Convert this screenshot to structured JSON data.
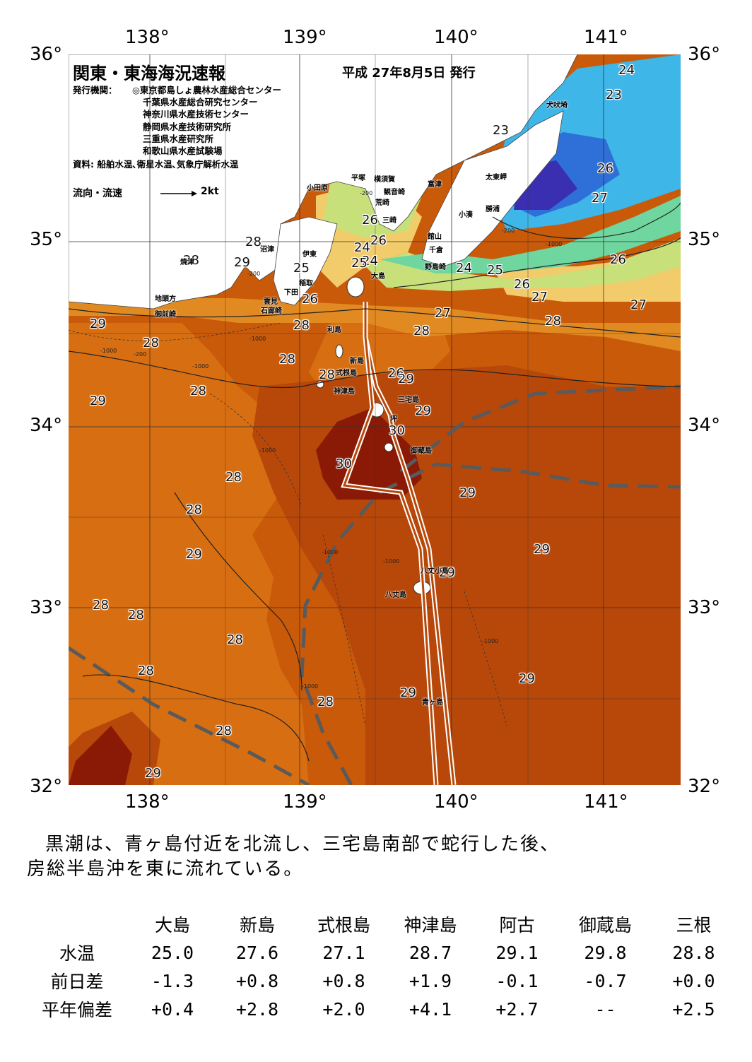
{
  "header": {
    "title": "関東・東海海況速報",
    "issue_date": "平成 27年8月5日 発行"
  },
  "publisher": {
    "label": "発行機関：",
    "orgs": [
      "◎東京都島しょ農林水産総合センター",
      "千葉県水産総合研究センター",
      "神奈川県水産技術センター",
      "静岡県水産技術研究所",
      "三重県水産研究所",
      "和歌山県水産試験場"
    ],
    "source": "資料: 船舶水温､衛星水温､気象庁解析水温"
  },
  "legend": {
    "label": "流向・流速",
    "scale": "2kt"
  },
  "axes": {
    "lon_top": [
      "138°",
      "139°",
      "140°",
      "141°"
    ],
    "lon_bottom": [
      "138°",
      "139°",
      "140°",
      "141°"
    ],
    "lat_left": [
      "36°",
      "35°",
      "34°",
      "33°",
      "32°"
    ],
    "lat_right": [
      "36°",
      "35°",
      "34°",
      "33°",
      "32°"
    ]
  },
  "isotherm_labels": [
    "24",
    "23",
    "23",
    "26",
    "27",
    "26",
    "24",
    "25",
    "26",
    "27",
    "27",
    "28",
    "26",
    "26",
    "25",
    "24",
    "25",
    "26",
    "24",
    "27",
    "28",
    "28",
    "29",
    "29",
    "28",
    "28",
    "28",
    "28",
    "28",
    "29",
    "26",
    "28",
    "29",
    "29",
    "30",
    "30",
    "28",
    "29",
    "29",
    "28",
    "29",
    "29",
    "28",
    "28",
    "28",
    "28",
    "28",
    "29",
    "29",
    "28",
    "29"
  ],
  "place_names": [
    "犬吠埼",
    "太東岬",
    "勝浦",
    "小湊",
    "富津",
    "横須賀",
    "観音崎",
    "平塚",
    "荒崎",
    "小田原",
    "三崎",
    "館山",
    "千倉",
    "野島崎",
    "伊東",
    "稲取",
    "下田",
    "雲見",
    "石廊崎",
    "沼津",
    "焼津",
    "地頭方",
    "御前崎",
    "大島",
    "利島",
    "新島",
    "式根島",
    "神津島",
    "三宅島",
    "坪",
    "御蔵島",
    "八丈島",
    "八丈小島",
    "青ヶ島"
  ],
  "depth_labels": [
    "-200",
    "-200",
    "-200",
    "-1000",
    "-1000",
    "-1000",
    "-1000",
    "-1000",
    "-1000",
    "-1000",
    "-1000",
    "-1000",
    "-200"
  ],
  "summary": {
    "line1": "黒潮は、青ヶ島付近を北流し、三宅島南部で蛇行した後、",
    "line2": "房総半島沖を東に流れている。"
  },
  "table": {
    "stations": [
      "大島",
      "新島",
      "式根島",
      "神津島",
      "阿古",
      "御蔵島",
      "三根"
    ],
    "rows": [
      {
        "label": "水温",
        "values": [
          "25.0",
          "27.6",
          "27.1",
          "28.7",
          "29.1",
          "29.8",
          "28.8"
        ]
      },
      {
        "label": "前日差",
        "values": [
          "-1.3",
          "+0.8",
          "+0.8",
          "+1.9",
          "-0.1",
          "-0.7",
          "+0.0"
        ]
      },
      {
        "label": "平年偏差",
        "values": [
          "+0.4",
          "+2.8",
          "+2.0",
          "+4.1",
          "+2.7",
          "--",
          "+2.5"
        ]
      }
    ]
  },
  "colors": {
    "sea_28": "#c95a0a",
    "sea_29": "#b8480a",
    "sea_30": "#8a1a06",
    "sea_27": "#e28a22",
    "sea_26": "#f2cb6b",
    "sea_25": "#c8e07a",
    "sea_24": "#6fd6a0",
    "sea_23": "#3fb6e8",
    "sea_22": "#2f6fd8",
    "sea_21": "#3a2fb0",
    "land": "#ffffff",
    "kuroshio_path": "#ffffff",
    "mean_axis": "#5a5a5a"
  }
}
